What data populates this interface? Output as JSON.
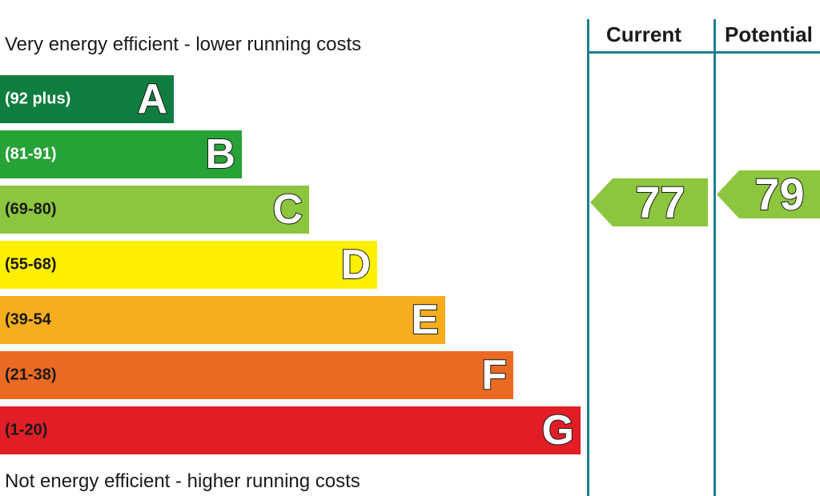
{
  "captions": {
    "top": "Very energy efficient - lower running costs",
    "bottom": "Not energy efficient - higher running costs"
  },
  "columns": {
    "current": "Current",
    "potential": "Potential"
  },
  "chart_data": {
    "type": "bar",
    "bands": [
      {
        "letter": "A",
        "range": "(92 plus)",
        "color": "#0f7d3f",
        "dark": true
      },
      {
        "letter": "B",
        "range": "(81-91)",
        "color": "#26a237",
        "dark": true
      },
      {
        "letter": "C",
        "range": "(69-80)",
        "color": "#8cc63f",
        "dark": false
      },
      {
        "letter": "D",
        "range": "(55-68)",
        "color": "#ffef00",
        "dark": false
      },
      {
        "letter": "E",
        "range": "(39-54",
        "color": "#f6ae1f",
        "dark": false
      },
      {
        "letter": "F",
        "range": "(21-38)",
        "color": "#ea6a24",
        "dark": false
      },
      {
        "letter": "G",
        "range": "(1-20)",
        "color": "#e11d25",
        "dark": false
      }
    ],
    "current": {
      "value": 77,
      "band": "C",
      "color": "#8cc63f"
    },
    "potential": {
      "value": 79,
      "band": "C",
      "color": "#8cc63f"
    }
  }
}
